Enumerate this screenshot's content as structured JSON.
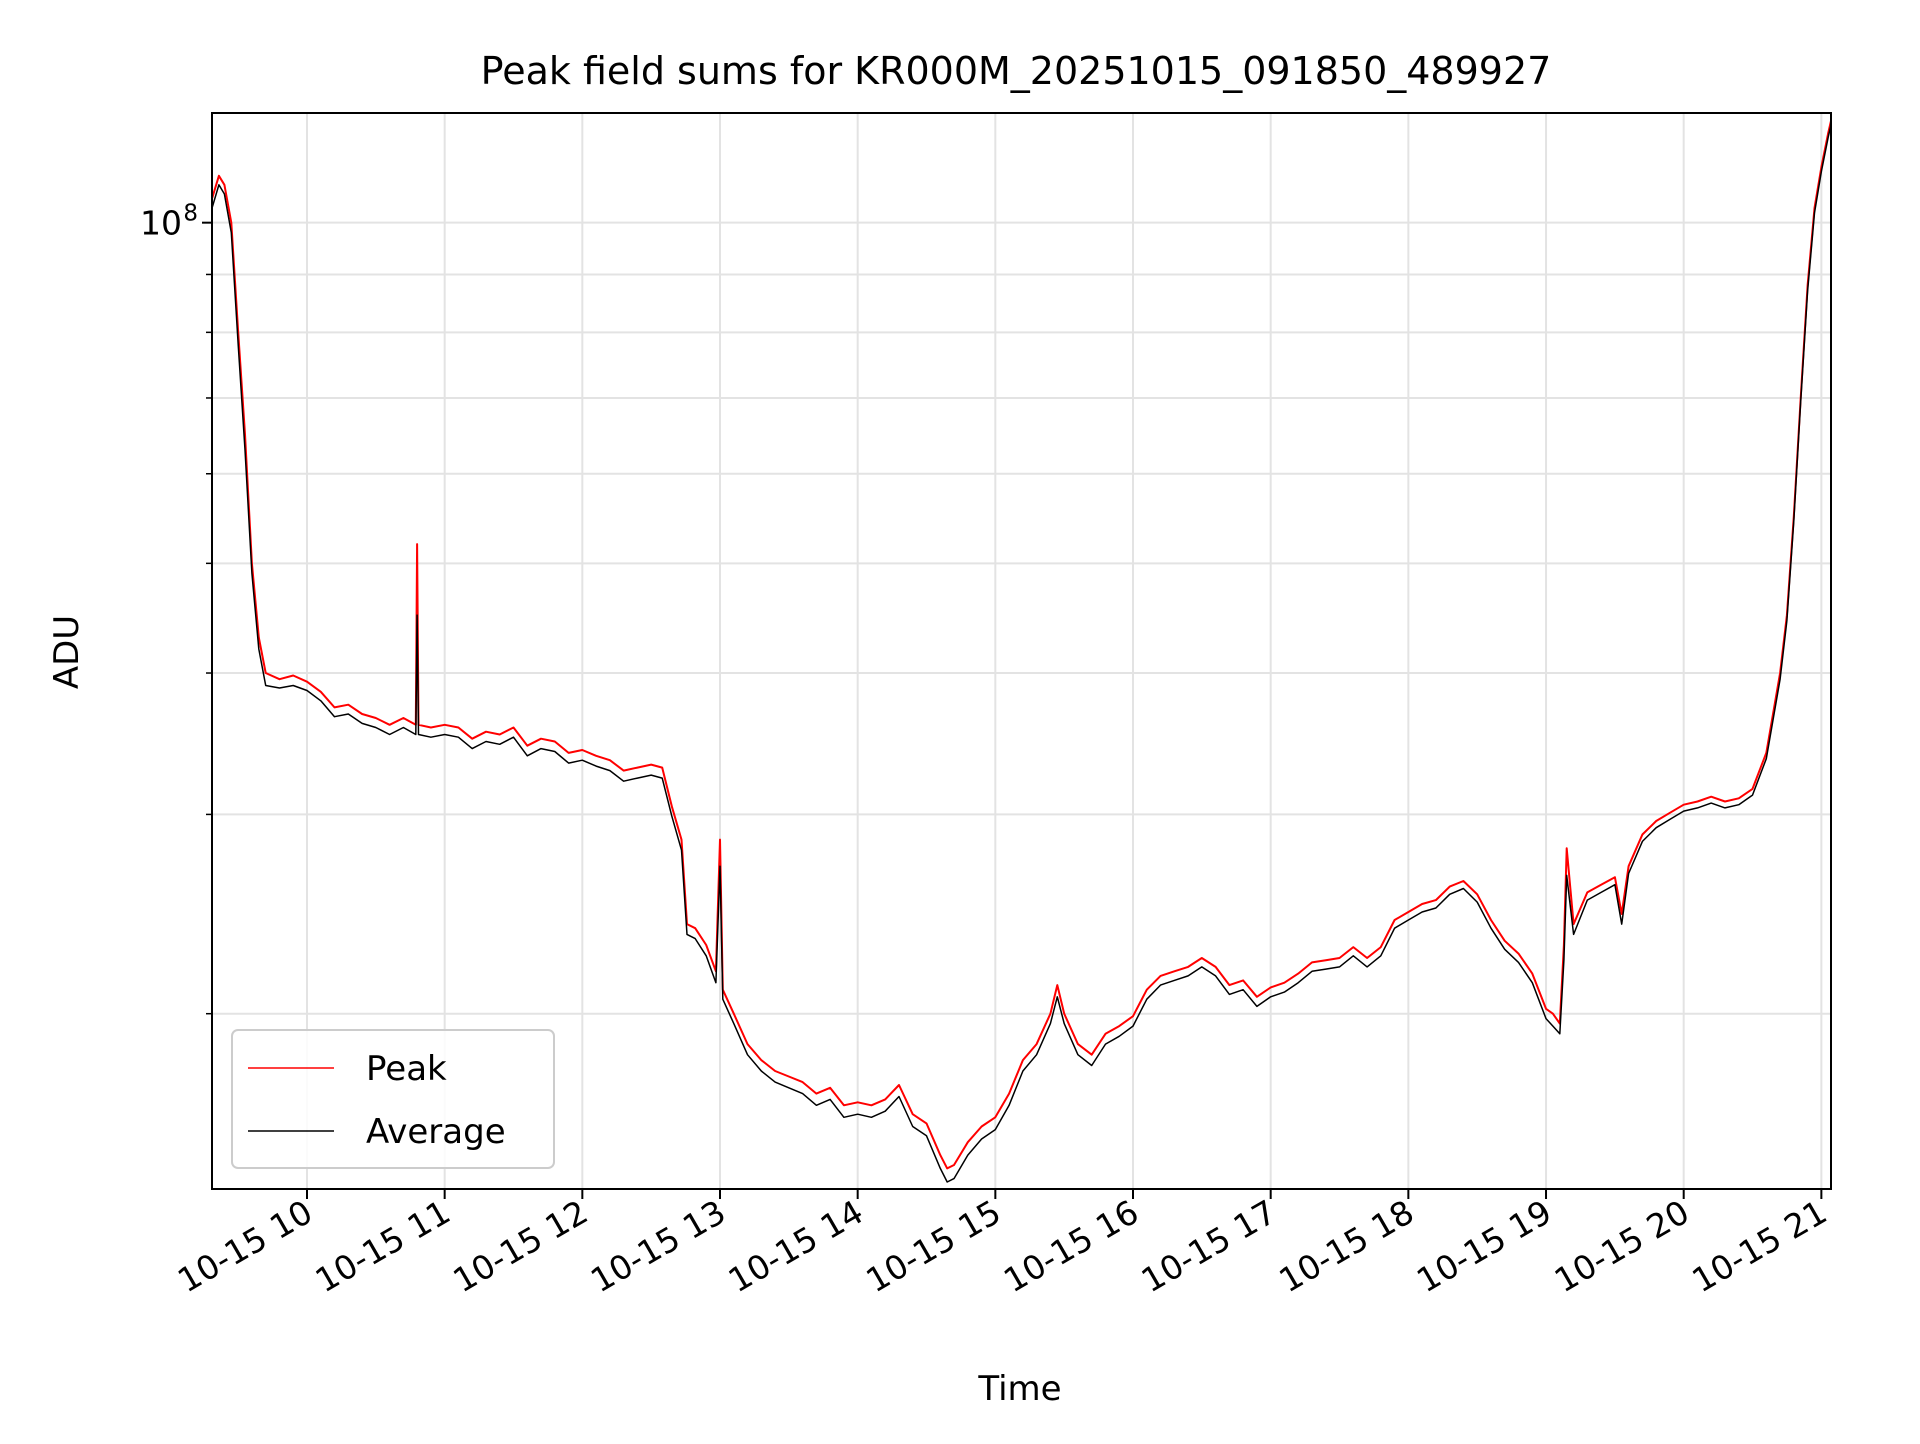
{
  "chart_data": {
    "type": "line",
    "title": "Peak field sums for KR000M_20251015_091850_489927",
    "xlabel": "Time",
    "ylabel": "ADU",
    "y_scale": "log",
    "y_tick_label": {
      "base": "10",
      "exponent": "8",
      "value": 100000000
    },
    "ylim": [
      14000000,
      125000000
    ],
    "xlim_hours": [
      9.31,
      21.07
    ],
    "x_ticks": [
      {
        "hour": 10,
        "label": "10-15 10"
      },
      {
        "hour": 11,
        "label": "10-15 11"
      },
      {
        "hour": 12,
        "label": "10-15 12"
      },
      {
        "hour": 13,
        "label": "10-15 13"
      },
      {
        "hour": 14,
        "label": "10-15 14"
      },
      {
        "hour": 15,
        "label": "10-15 15"
      },
      {
        "hour": 16,
        "label": "10-15 16"
      },
      {
        "hour": 17,
        "label": "10-15 17"
      },
      {
        "hour": 18,
        "label": "10-15 18"
      },
      {
        "hour": 19,
        "label": "10-15 19"
      },
      {
        "hour": 20,
        "label": "10-15 20"
      },
      {
        "hour": 21,
        "label": "10-15 21"
      }
    ],
    "y_minor_ticks": [
      20000000,
      30000000,
      40000000,
      50000000,
      60000000,
      70000000,
      80000000,
      90000000
    ],
    "legend": {
      "position": "lower-left",
      "entries": [
        "Peak",
        "Average"
      ]
    },
    "series": [
      {
        "name": "Peak",
        "color": "#ff0000",
        "points": [
          [
            9.31,
            105000000
          ],
          [
            9.36,
            110000000
          ],
          [
            9.4,
            108000000
          ],
          [
            9.45,
            100000000
          ],
          [
            9.5,
            80000000
          ],
          [
            9.55,
            65000000
          ],
          [
            9.6,
            50000000
          ],
          [
            9.65,
            43000000
          ],
          [
            9.7,
            40000000
          ],
          [
            9.8,
            39500000
          ],
          [
            9.9,
            39800000
          ],
          [
            10.0,
            39300000
          ],
          [
            10.1,
            38500000
          ],
          [
            10.2,
            37300000
          ],
          [
            10.3,
            37500000
          ],
          [
            10.4,
            36800000
          ],
          [
            10.5,
            36500000
          ],
          [
            10.6,
            36000000
          ],
          [
            10.7,
            36500000
          ],
          [
            10.79,
            36000000
          ],
          [
            10.8,
            52000000
          ],
          [
            10.81,
            36000000
          ],
          [
            10.9,
            35800000
          ],
          [
            11.0,
            36000000
          ],
          [
            11.1,
            35800000
          ],
          [
            11.2,
            35000000
          ],
          [
            11.3,
            35500000
          ],
          [
            11.4,
            35300000
          ],
          [
            11.5,
            35800000
          ],
          [
            11.6,
            34500000
          ],
          [
            11.7,
            35000000
          ],
          [
            11.8,
            34800000
          ],
          [
            11.9,
            34000000
          ],
          [
            12.0,
            34200000
          ],
          [
            12.1,
            33800000
          ],
          [
            12.2,
            33500000
          ],
          [
            12.3,
            32800000
          ],
          [
            12.4,
            33000000
          ],
          [
            12.5,
            33200000
          ],
          [
            12.58,
            33000000
          ],
          [
            12.65,
            30500000
          ],
          [
            12.72,
            28500000
          ],
          [
            12.76,
            24000000
          ],
          [
            12.82,
            23800000
          ],
          [
            12.9,
            23000000
          ],
          [
            12.97,
            21800000
          ],
          [
            13.0,
            28500000
          ],
          [
            13.02,
            21000000
          ],
          [
            13.1,
            20000000
          ],
          [
            13.2,
            18800000
          ],
          [
            13.3,
            18200000
          ],
          [
            13.4,
            17800000
          ],
          [
            13.5,
            17600000
          ],
          [
            13.6,
            17400000
          ],
          [
            13.7,
            17000000
          ],
          [
            13.8,
            17200000
          ],
          [
            13.9,
            16600000
          ],
          [
            14.0,
            16700000
          ],
          [
            14.1,
            16600000
          ],
          [
            14.2,
            16800000
          ],
          [
            14.3,
            17300000
          ],
          [
            14.4,
            16300000
          ],
          [
            14.5,
            16000000
          ],
          [
            14.6,
            15000000
          ],
          [
            14.65,
            14600000
          ],
          [
            14.7,
            14700000
          ],
          [
            14.8,
            15400000
          ],
          [
            14.9,
            15900000
          ],
          [
            15.0,
            16200000
          ],
          [
            15.1,
            17000000
          ],
          [
            15.2,
            18200000
          ],
          [
            15.3,
            18800000
          ],
          [
            15.4,
            20000000
          ],
          [
            15.45,
            21200000
          ],
          [
            15.5,
            20000000
          ],
          [
            15.6,
            18800000
          ],
          [
            15.7,
            18400000
          ],
          [
            15.8,
            19200000
          ],
          [
            15.9,
            19500000
          ],
          [
            16.0,
            19900000
          ],
          [
            16.1,
            21000000
          ],
          [
            16.2,
            21600000
          ],
          [
            16.3,
            21800000
          ],
          [
            16.4,
            22000000
          ],
          [
            16.5,
            22400000
          ],
          [
            16.6,
            22000000
          ],
          [
            16.7,
            21200000
          ],
          [
            16.8,
            21400000
          ],
          [
            16.9,
            20700000
          ],
          [
            17.0,
            21100000
          ],
          [
            17.1,
            21300000
          ],
          [
            17.2,
            21700000
          ],
          [
            17.3,
            22200000
          ],
          [
            17.4,
            22300000
          ],
          [
            17.5,
            22400000
          ],
          [
            17.6,
            22900000
          ],
          [
            17.7,
            22400000
          ],
          [
            17.8,
            22900000
          ],
          [
            17.9,
            24200000
          ],
          [
            18.0,
            24600000
          ],
          [
            18.1,
            25000000
          ],
          [
            18.2,
            25200000
          ],
          [
            18.3,
            25900000
          ],
          [
            18.4,
            26200000
          ],
          [
            18.5,
            25500000
          ],
          [
            18.6,
            24200000
          ],
          [
            18.7,
            23200000
          ],
          [
            18.8,
            22600000
          ],
          [
            18.9,
            21700000
          ],
          [
            19.0,
            20200000
          ],
          [
            19.05,
            20000000
          ],
          [
            19.1,
            19600000
          ],
          [
            19.13,
            23000000
          ],
          [
            19.15,
            28000000
          ],
          [
            19.2,
            24000000
          ],
          [
            19.3,
            25600000
          ],
          [
            19.4,
            26000000
          ],
          [
            19.5,
            26400000
          ],
          [
            19.55,
            24500000
          ],
          [
            19.6,
            27000000
          ],
          [
            19.7,
            28800000
          ],
          [
            19.8,
            29600000
          ],
          [
            19.9,
            30100000
          ],
          [
            20.0,
            30600000
          ],
          [
            20.1,
            30800000
          ],
          [
            20.2,
            31100000
          ],
          [
            20.3,
            30800000
          ],
          [
            20.4,
            31000000
          ],
          [
            20.5,
            31600000
          ],
          [
            20.6,
            34000000
          ],
          [
            20.7,
            40000000
          ],
          [
            20.75,
            45000000
          ],
          [
            20.8,
            55000000
          ],
          [
            20.85,
            70000000
          ],
          [
            20.9,
            88000000
          ],
          [
            20.95,
            103000000
          ],
          [
            21.0,
            112000000
          ],
          [
            21.05,
            120000000
          ],
          [
            21.07,
            123000000
          ]
        ]
      },
      {
        "name": "Average",
        "color": "#000000",
        "points": [
          [
            9.31,
            103000000
          ],
          [
            9.36,
            108000000
          ],
          [
            9.4,
            106000000
          ],
          [
            9.45,
            98000000
          ],
          [
            9.5,
            78000000
          ],
          [
            9.55,
            63000000
          ],
          [
            9.6,
            49000000
          ],
          [
            9.65,
            42000000
          ],
          [
            9.7,
            39000000
          ],
          [
            9.8,
            38800000
          ],
          [
            9.9,
            39000000
          ],
          [
            10.0,
            38600000
          ],
          [
            10.1,
            37800000
          ],
          [
            10.2,
            36600000
          ],
          [
            10.3,
            36800000
          ],
          [
            10.4,
            36100000
          ],
          [
            10.5,
            35800000
          ],
          [
            10.6,
            35300000
          ],
          [
            10.7,
            35800000
          ],
          [
            10.79,
            35300000
          ],
          [
            10.8,
            45000000
          ],
          [
            10.81,
            35300000
          ],
          [
            10.9,
            35100000
          ],
          [
            11.0,
            35300000
          ],
          [
            11.1,
            35100000
          ],
          [
            11.2,
            34300000
          ],
          [
            11.3,
            34800000
          ],
          [
            11.4,
            34600000
          ],
          [
            11.5,
            35100000
          ],
          [
            11.6,
            33800000
          ],
          [
            11.7,
            34300000
          ],
          [
            11.8,
            34100000
          ],
          [
            11.9,
            33300000
          ],
          [
            12.0,
            33500000
          ],
          [
            12.1,
            33100000
          ],
          [
            12.2,
            32800000
          ],
          [
            12.3,
            32100000
          ],
          [
            12.4,
            32300000
          ],
          [
            12.5,
            32500000
          ],
          [
            12.58,
            32300000
          ],
          [
            12.65,
            29900000
          ],
          [
            12.72,
            27900000
          ],
          [
            12.76,
            23500000
          ],
          [
            12.82,
            23300000
          ],
          [
            12.9,
            22500000
          ],
          [
            12.97,
            21300000
          ],
          [
            13.0,
            27000000
          ],
          [
            13.02,
            20600000
          ],
          [
            13.1,
            19600000
          ],
          [
            13.2,
            18400000
          ],
          [
            13.3,
            17800000
          ],
          [
            13.4,
            17400000
          ],
          [
            13.5,
            17200000
          ],
          [
            13.6,
            17000000
          ],
          [
            13.7,
            16600000
          ],
          [
            13.8,
            16800000
          ],
          [
            13.9,
            16200000
          ],
          [
            14.0,
            16300000
          ],
          [
            14.1,
            16200000
          ],
          [
            14.2,
            16400000
          ],
          [
            14.3,
            16900000
          ],
          [
            14.4,
            15900000
          ],
          [
            14.5,
            15600000
          ],
          [
            14.6,
            14600000
          ],
          [
            14.65,
            14200000
          ],
          [
            14.7,
            14300000
          ],
          [
            14.8,
            15000000
          ],
          [
            14.9,
            15500000
          ],
          [
            15.0,
            15800000
          ],
          [
            15.1,
            16600000
          ],
          [
            15.2,
            17800000
          ],
          [
            15.3,
            18400000
          ],
          [
            15.4,
            19600000
          ],
          [
            15.45,
            20700000
          ],
          [
            15.5,
            19600000
          ],
          [
            15.6,
            18400000
          ],
          [
            15.7,
            18000000
          ],
          [
            15.8,
            18800000
          ],
          [
            15.9,
            19100000
          ],
          [
            16.0,
            19500000
          ],
          [
            16.1,
            20600000
          ],
          [
            16.2,
            21200000
          ],
          [
            16.3,
            21400000
          ],
          [
            16.4,
            21600000
          ],
          [
            16.5,
            22000000
          ],
          [
            16.6,
            21600000
          ],
          [
            16.7,
            20800000
          ],
          [
            16.8,
            21000000
          ],
          [
            16.9,
            20300000
          ],
          [
            17.0,
            20700000
          ],
          [
            17.1,
            20900000
          ],
          [
            17.2,
            21300000
          ],
          [
            17.3,
            21800000
          ],
          [
            17.4,
            21900000
          ],
          [
            17.5,
            22000000
          ],
          [
            17.6,
            22500000
          ],
          [
            17.7,
            22000000
          ],
          [
            17.8,
            22500000
          ],
          [
            17.9,
            23800000
          ],
          [
            18.0,
            24200000
          ],
          [
            18.1,
            24600000
          ],
          [
            18.2,
            24800000
          ],
          [
            18.3,
            25500000
          ],
          [
            18.4,
            25800000
          ],
          [
            18.5,
            25100000
          ],
          [
            18.6,
            23800000
          ],
          [
            18.7,
            22800000
          ],
          [
            18.8,
            22200000
          ],
          [
            18.9,
            21300000
          ],
          [
            19.0,
            19800000
          ],
          [
            19.05,
            19500000
          ],
          [
            19.1,
            19200000
          ],
          [
            19.13,
            22300000
          ],
          [
            19.15,
            26500000
          ],
          [
            19.2,
            23500000
          ],
          [
            19.3,
            25200000
          ],
          [
            19.4,
            25600000
          ],
          [
            19.5,
            26000000
          ],
          [
            19.55,
            24000000
          ],
          [
            19.6,
            26600000
          ],
          [
            19.7,
            28400000
          ],
          [
            19.8,
            29200000
          ],
          [
            19.9,
            29700000
          ],
          [
            20.0,
            30200000
          ],
          [
            20.1,
            30400000
          ],
          [
            20.2,
            30700000
          ],
          [
            20.3,
            30400000
          ],
          [
            20.4,
            30600000
          ],
          [
            20.5,
            31200000
          ],
          [
            20.6,
            33600000
          ],
          [
            20.7,
            39500000
          ],
          [
            20.75,
            44500000
          ],
          [
            20.8,
            54500000
          ],
          [
            20.85,
            69500000
          ],
          [
            20.9,
            87000000
          ],
          [
            20.95,
            102000000
          ],
          [
            21.0,
            111000000
          ],
          [
            21.05,
            119000000
          ],
          [
            21.07,
            122000000
          ]
        ]
      }
    ]
  }
}
